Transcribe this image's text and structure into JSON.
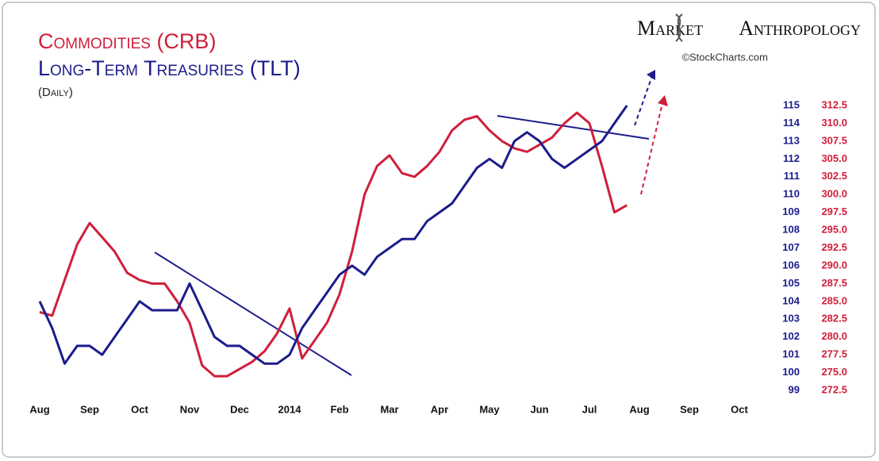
{
  "header": {
    "brand": "Market Anthropology",
    "credit": "©StockCharts.com"
  },
  "chart_data": {
    "type": "line",
    "subtitle": "(Daily)",
    "categories": [
      "Aug",
      null,
      null,
      null,
      "Sep",
      null,
      null,
      null,
      "Oct",
      null,
      null,
      null,
      "Nov",
      null,
      null,
      null,
      "Dec",
      null,
      null,
      null,
      "2014",
      null,
      null,
      null,
      "Feb",
      null,
      null,
      null,
      "Mar",
      null,
      null,
      null,
      "Apr",
      null,
      null,
      null,
      "May",
      null,
      null,
      null,
      "Jun",
      null,
      null,
      null,
      "Jul",
      null,
      null,
      null,
      "Aug",
      null,
      null,
      null,
      "Sep",
      null,
      null,
      null,
      "Oct",
      null,
      null,
      null
    ],
    "series": [
      {
        "name": "Commodities (CRB)",
        "color": "#cf1f3a",
        "axis": "y2",
        "values": [
          283.5,
          283,
          288,
          293,
          296,
          294,
          292,
          289,
          288,
          287.5,
          287.5,
          285,
          282,
          276,
          274.5,
          274.5,
          275.5,
          276.5,
          278,
          280.5,
          284,
          277,
          279.5,
          282,
          286,
          292,
          300,
          304,
          305.5,
          303,
          302.5,
          304,
          306,
          309,
          310.5,
          311,
          309,
          307.5,
          306.5,
          306,
          307,
          308,
          310,
          311.5,
          310,
          304,
          297.5,
          298.5,
          null,
          null,
          null,
          null,
          null,
          null,
          null,
          null,
          null,
          null,
          null,
          null
        ]
      },
      {
        "name": "Long-Term Treasuries (TLT)",
        "color": "#1c1c8c",
        "values": [
          104,
          102.5,
          100.5,
          101.5,
          101.5,
          101,
          102,
          103,
          104,
          103.5,
          103.5,
          103.5,
          105,
          103.5,
          102,
          101.5,
          101.5,
          101,
          100.5,
          100.5,
          101,
          102.5,
          103.5,
          104.5,
          105.5,
          106,
          105.5,
          106.5,
          107,
          107.5,
          107.5,
          108.5,
          109,
          109.5,
          110.5,
          111.5,
          112,
          111.5,
          113,
          113.5,
          113,
          112,
          111.5,
          112,
          112.5,
          113,
          114,
          115,
          null,
          null,
          null,
          null,
          null,
          null,
          null,
          null,
          null,
          null,
          null,
          null
        ]
      }
    ],
    "ylim": [
      99,
      115
    ],
    "yticks": [
      99,
      100,
      101,
      102,
      103,
      104,
      105,
      106,
      107,
      108,
      109,
      110,
      111,
      112,
      113,
      114,
      115
    ],
    "y2lim": [
      272.5,
      312.5
    ],
    "y2ticks": [
      272.5,
      {
        "value": 275,
        "label": "275.0"
      },
      277.5,
      {
        "value": 280,
        "label": "280.0"
      },
      282.5,
      {
        "value": 285,
        "label": "285.0"
      },
      287.5,
      {
        "value": 290,
        "label": "290.0"
      },
      292.5,
      {
        "value": 295,
        "label": "295.0"
      },
      297.5,
      {
        "value": 300,
        "label": "300.0"
      },
      302.5,
      {
        "value": 305,
        "label": "305.0"
      },
      307.5,
      {
        "value": 310,
        "label": "310.0"
      },
      312.5
    ]
  }
}
